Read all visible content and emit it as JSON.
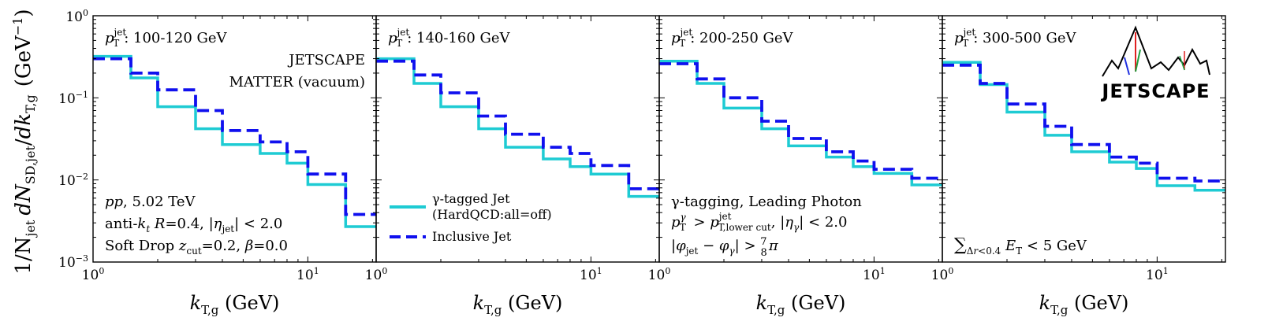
{
  "figure": {
    "ylabel": "1/N_jet dN_SD,jet/dk_T,g (GeV^-1)",
    "colors": {
      "gamma": "#1ecbd3",
      "inclusive": "#1010ee",
      "axis": "#000000"
    },
    "y_ticks": [
      "10^-3",
      "10^-2",
      "10^-1",
      "10^0"
    ],
    "x_ticks": {
      "major": "10^0",
      "second": "10^1"
    }
  },
  "legend": {
    "gamma_line1": "γ-tagged Jet",
    "gamma_line2": "(HardQCD:all=off)",
    "inclusive": "Inclusive Jet"
  },
  "annotations": {
    "experiment": "JETSCAPE",
    "model": "MATTER (vacuum)",
    "system": "pp, 5.02 TeV",
    "jet_def": "anti-kt R=0.4, |ηjet| < 2.0",
    "softdrop": "Soft Drop zcut=0.2, β=0.0",
    "gamma_tag_1": "γ-tagging, Leading Photon",
    "gamma_tag_2": "pTγ > pTjet lower cut, |ηγ| < 2.0",
    "gamma_tag_3": "|φjet − φγ| > 7/8 π",
    "isolation": "Σ_Δr<0.4 ET < 5 GeV",
    "logo_text": "JETSCAPE"
  },
  "chart_data": [
    {
      "type": "line",
      "title": "pT jet: 100-120 GeV",
      "xlabel": "kT,g (GeV)",
      "ylabel": "1/Njet dNSD,jet/dkT,g (GeV^-1)",
      "xscale": "log",
      "yscale": "log",
      "xlim": [
        1.0,
        20.8
      ],
      "ylim": [
        0.001,
        1.0
      ],
      "bin_edges": [
        1.0,
        1.5,
        2.0,
        3.0,
        4.0,
        6.0,
        8.0,
        10.0,
        15.0,
        20.8
      ],
      "series": [
        {
          "name": "γ-tagged Jet (HardQCD:all=off)",
          "values": [
            0.32,
            0.175,
            0.078,
            0.042,
            0.027,
            0.021,
            0.016,
            0.0088,
            0.0027
          ]
        },
        {
          "name": "Inclusive Jet",
          "values": [
            0.3,
            0.2,
            0.125,
            0.07,
            0.04,
            0.029,
            0.022,
            0.0118,
            0.0038
          ]
        }
      ]
    },
    {
      "type": "line",
      "title": "pT jet: 140-160 GeV",
      "xlabel": "kT,g (GeV)",
      "xscale": "log",
      "yscale": "log",
      "xlim": [
        1.0,
        20.8
      ],
      "ylim": [
        0.001,
        1.0
      ],
      "bin_edges": [
        1.0,
        1.5,
        2.0,
        3.0,
        4.0,
        6.0,
        8.0,
        10.0,
        15.0,
        20.8
      ],
      "series": [
        {
          "name": "γ-tagged Jet (HardQCD:all=off)",
          "values": [
            0.3,
            0.15,
            0.078,
            0.042,
            0.025,
            0.018,
            0.0145,
            0.0118,
            0.0063
          ]
        },
        {
          "name": "Inclusive Jet",
          "values": [
            0.28,
            0.19,
            0.115,
            0.06,
            0.036,
            0.025,
            0.021,
            0.015,
            0.0078
          ]
        }
      ]
    },
    {
      "type": "line",
      "title": "pT jet: 200-250 GeV",
      "xlabel": "kT,g (GeV)",
      "xscale": "log",
      "yscale": "log",
      "xlim": [
        1.0,
        20.8
      ],
      "ylim": [
        0.001,
        1.0
      ],
      "bin_edges": [
        1.0,
        1.5,
        2.0,
        3.0,
        4.0,
        6.0,
        8.0,
        10.0,
        15.0,
        20.8
      ],
      "series": [
        {
          "name": "γ-tagged Jet (HardQCD:all=off)",
          "values": [
            0.28,
            0.15,
            0.075,
            0.042,
            0.026,
            0.019,
            0.0145,
            0.012,
            0.0087
          ]
        },
        {
          "name": "Inclusive Jet",
          "values": [
            0.26,
            0.17,
            0.1,
            0.052,
            0.032,
            0.022,
            0.017,
            0.0135,
            0.0105
          ]
        }
      ]
    },
    {
      "type": "line",
      "title": "pT jet: 300-500 GeV",
      "xlabel": "kT,g (GeV)",
      "xscale": "log",
      "yscale": "log",
      "xlim": [
        1.0,
        20.8
      ],
      "ylim": [
        0.001,
        1.0
      ],
      "bin_edges": [
        1.0,
        1.5,
        2.0,
        3.0,
        4.0,
        6.0,
        8.0,
        10.0,
        15.0,
        20.8
      ],
      "series": [
        {
          "name": "γ-tagged Jet (HardQCD:all=off)",
          "values": [
            0.27,
            0.145,
            0.067,
            0.035,
            0.022,
            0.0165,
            0.0138,
            0.0085,
            0.0075
          ]
        },
        {
          "name": "Inclusive Jet",
          "values": [
            0.25,
            0.15,
            0.084,
            0.045,
            0.027,
            0.019,
            0.016,
            0.0105,
            0.0097
          ]
        }
      ]
    }
  ]
}
